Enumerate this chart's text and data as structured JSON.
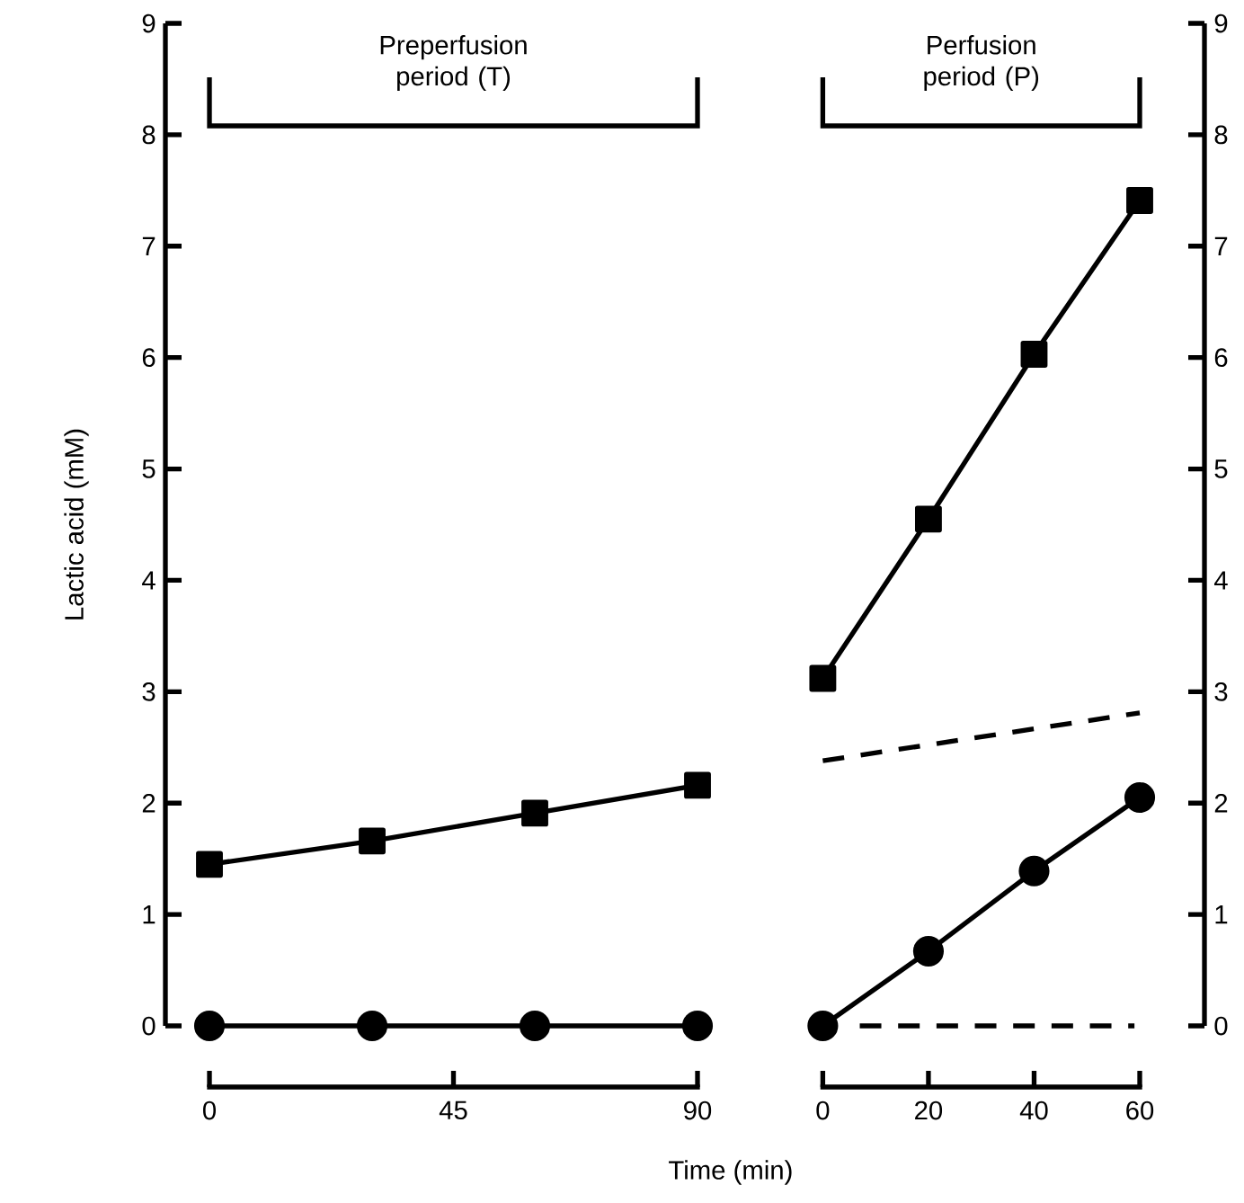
{
  "chart_data": [
    {
      "type": "line",
      "ylabel": "Lactic acid (mM)",
      "xlim": [
        0,
        90
      ],
      "xticks": [
        0,
        45,
        90
      ],
      "ylim": [
        0,
        9
      ],
      "yticks": [
        0,
        1,
        2,
        3,
        4,
        5,
        6,
        7,
        8,
        9
      ],
      "annotations": [
        "Preperfusion period (T)"
      ],
      "series": [
        {
          "color": "#000000",
          "marker": "square",
          "line_style": "solid",
          "x": [
            0,
            30,
            60,
            90
          ],
          "values": [
            1.45,
            1.66,
            1.91,
            2.16
          ]
        },
        {
          "color": "#000000",
          "marker": "circle",
          "line_style": "solid",
          "x": [
            0,
            30,
            60,
            90
          ],
          "values": [
            0,
            0,
            0,
            0
          ]
        }
      ]
    },
    {
      "type": "line",
      "xlabel": "Time (min)",
      "xlim": [
        0,
        60
      ],
      "xticks": [
        0,
        20,
        40,
        60
      ],
      "ylim": [
        0,
        9
      ],
      "yticks": [
        0,
        1,
        2,
        3,
        4,
        5,
        6,
        7,
        8,
        9
      ],
      "annotations": [
        "Perfusion period (P)"
      ],
      "series": [
        {
          "color": "#000000",
          "marker": "square",
          "line_style": "solid",
          "x": [
            0,
            20,
            40,
            60
          ],
          "values": [
            3.12,
            4.55,
            6.03,
            7.41
          ]
        },
        {
          "color": "#000000",
          "marker": "circle",
          "line_style": "solid",
          "x": [
            0,
            20,
            40,
            60
          ],
          "values": [
            0,
            0.67,
            1.39,
            2.05
          ]
        },
        {
          "color": "#000000",
          "marker": "none",
          "line_style": "dashed",
          "x": [
            0,
            60
          ],
          "values": [
            2.38,
            2.81
          ]
        },
        {
          "color": "#000000",
          "marker": "none",
          "line_style": "dashed",
          "x": [
            7,
            59
          ],
          "values": [
            0,
            0
          ]
        }
      ]
    }
  ]
}
